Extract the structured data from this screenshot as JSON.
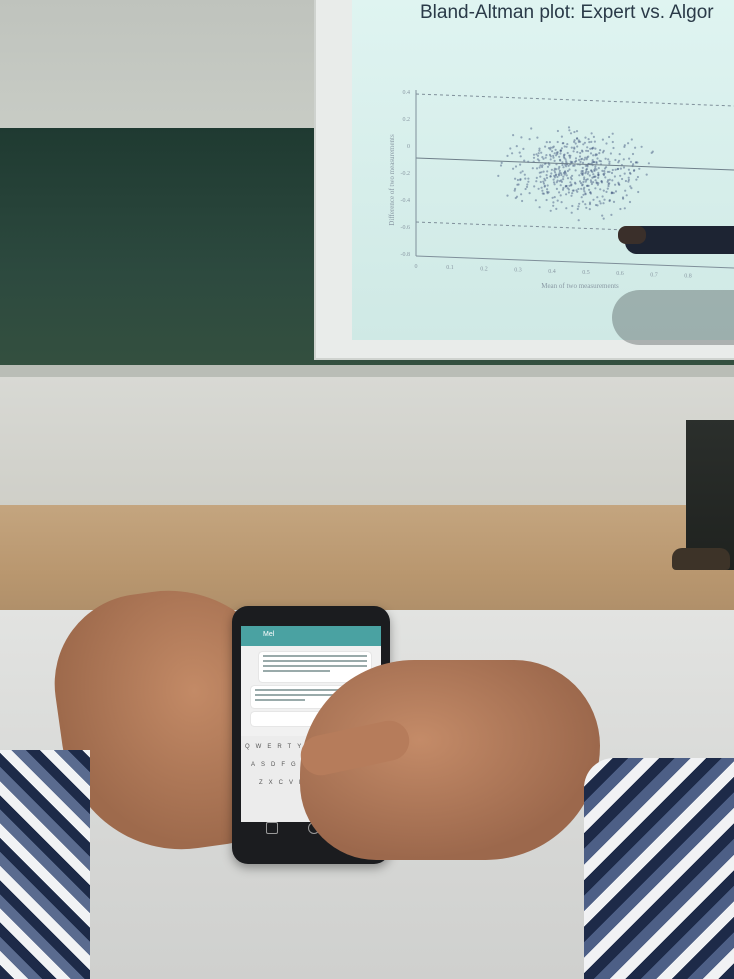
{
  "slide": {
    "title": "Bland-Altman plot: Expert vs. Algor",
    "ylabel": "Difference of two measurements",
    "xlabel": "Mean of two measurements",
    "y_ticks": [
      "0.4",
      "0.2",
      "0",
      "-0.2",
      "-0.4",
      "-0.6",
      "-0.8"
    ],
    "x_ticks": [
      "0",
      "0.1",
      "0.2",
      "0.3",
      "0.4",
      "0.5",
      "0.6",
      "0.7",
      "0.8"
    ]
  },
  "phone": {
    "contact": "Mel",
    "keyboard_rows": [
      "QWERTYUIOP",
      "ASDFGHJKL",
      "ZXCVBNM"
    ]
  },
  "colors": {
    "slide_bg": "#dff4f1",
    "plot_points": "#3b4f7a",
    "chat_header": "#4aa2a2"
  }
}
